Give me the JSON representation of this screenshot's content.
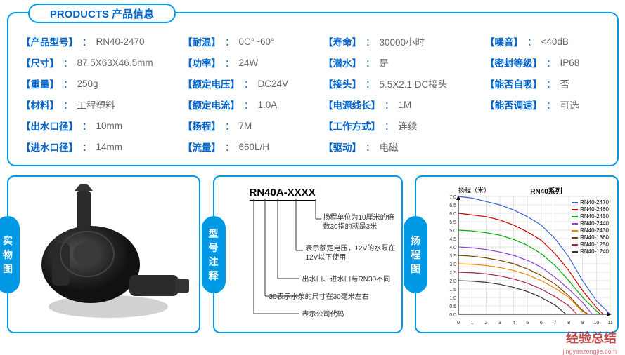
{
  "header": {
    "title": "PRODUCTS  产品信息"
  },
  "specs": {
    "col1": [
      {
        "label": "产品型号",
        "val": "RN40-2470"
      },
      {
        "label": "尺寸",
        "val": "87.5X63X46.5mm"
      },
      {
        "label": "重量",
        "val": "250g"
      },
      {
        "label": "材料",
        "val": "工程塑料"
      },
      {
        "label": "出水口径",
        "val": "10mm"
      },
      {
        "label": "进水口径",
        "val": "14mm"
      }
    ],
    "col2": [
      {
        "label": "耐温",
        "val": "0C°~60°"
      },
      {
        "label": "功率",
        "val": "24W"
      },
      {
        "label": "额定电压",
        "val": "DC24V"
      },
      {
        "label": "额定电流",
        "val": "1.0A"
      },
      {
        "label": "扬程",
        "val": "7M"
      },
      {
        "label": "流量",
        "val": "660L/H"
      }
    ],
    "col3": [
      {
        "label": "寿命",
        "val": "30000小时"
      },
      {
        "label": "潜水",
        "val": "是"
      },
      {
        "label": "接头",
        "val": "5.5X2.1 DC接头"
      },
      {
        "label": "电源线长",
        "val": "1M"
      },
      {
        "label": "工作方式",
        "val": "连续"
      },
      {
        "label": "驱动",
        "val": "电磁"
      }
    ],
    "col4": [
      {
        "label": "噪音",
        "val": "<40dB"
      },
      {
        "label": "密封等级",
        "val": "IP68"
      },
      {
        "label": "能否自吸",
        "val": "否"
      },
      {
        "label": "能否调速",
        "val": "可选"
      }
    ]
  },
  "badges": {
    "b1": "实物图",
    "b2": "型号注释",
    "b3": "扬程图"
  },
  "model": {
    "title": "RN40A-XXXX",
    "annotations": [
      "扬程单位为10厘米的倍数30指的就是3米",
      "表示额定电压，12V的水泵在12V以下使用",
      "出水口、进水口与RN30不同",
      "30表示水泵的尺寸在30毫米左右",
      "表示公司代码"
    ]
  },
  "chart": {
    "type": "line",
    "title": "RN40系列",
    "y_label": "扬程（米）",
    "xlim": [
      0,
      11
    ],
    "ylim": [
      0,
      7
    ],
    "y_ticks": [
      0,
      0.5,
      1.0,
      1.5,
      2.0,
      2.5,
      3.0,
      3.5,
      4.0,
      4.5,
      5.0,
      5.5,
      6.0,
      6.5,
      7.0
    ],
    "x_ticks": [
      0,
      1,
      2,
      3,
      4,
      5,
      6,
      7,
      8,
      9,
      10,
      11
    ],
    "background_color": "#ffffff",
    "grid_color": "#cccccc",
    "line_width": 1.2,
    "series": [
      {
        "name": "RN40-2470",
        "color": "#3366cc",
        "data": [
          [
            0,
            7.0
          ],
          [
            1,
            6.9
          ],
          [
            2,
            6.7
          ],
          [
            3,
            6.5
          ],
          [
            4,
            6.2
          ],
          [
            5,
            5.8
          ],
          [
            6,
            5.3
          ],
          [
            7,
            4.5
          ],
          [
            8,
            3.4
          ],
          [
            9,
            2.0
          ],
          [
            10,
            0.8
          ],
          [
            11,
            0
          ]
        ]
      },
      {
        "name": "RN40-2460",
        "color": "#cc0000",
        "data": [
          [
            0,
            6.0
          ],
          [
            1,
            5.9
          ],
          [
            2,
            5.8
          ],
          [
            3,
            5.6
          ],
          [
            4,
            5.3
          ],
          [
            5,
            4.9
          ],
          [
            6,
            4.4
          ],
          [
            7,
            3.6
          ],
          [
            8,
            2.6
          ],
          [
            9,
            1.4
          ],
          [
            10,
            0.4
          ],
          [
            10.5,
            0
          ]
        ]
      },
      {
        "name": "RN40-2450",
        "color": "#00aa00",
        "data": [
          [
            0,
            5.0
          ],
          [
            1,
            4.95
          ],
          [
            2,
            4.85
          ],
          [
            3,
            4.7
          ],
          [
            4,
            4.45
          ],
          [
            5,
            4.1
          ],
          [
            6,
            3.6
          ],
          [
            7,
            2.9
          ],
          [
            8,
            2.0
          ],
          [
            9,
            1.0
          ],
          [
            10,
            0.2
          ],
          [
            10.3,
            0
          ]
        ]
      },
      {
        "name": "RN40-2440",
        "color": "#8844cc",
        "data": [
          [
            0,
            4.0
          ],
          [
            1,
            3.95
          ],
          [
            2,
            3.85
          ],
          [
            3,
            3.7
          ],
          [
            4,
            3.5
          ],
          [
            5,
            3.2
          ],
          [
            6,
            2.8
          ],
          [
            7,
            2.2
          ],
          [
            8,
            1.5
          ],
          [
            9,
            0.7
          ],
          [
            9.7,
            0
          ]
        ]
      },
      {
        "name": "RN40-2430",
        "color": "#ee8800",
        "data": [
          [
            0,
            3.0
          ],
          [
            1,
            2.97
          ],
          [
            2,
            2.9
          ],
          [
            3,
            2.78
          ],
          [
            4,
            2.6
          ],
          [
            5,
            2.35
          ],
          [
            6,
            2.0
          ],
          [
            7,
            1.55
          ],
          [
            8,
            1.0
          ],
          [
            8.8,
            0.3
          ],
          [
            9.3,
            0
          ]
        ]
      },
      {
        "name": "RN40-1860",
        "color": "#774400",
        "data": [
          [
            0,
            3.5
          ],
          [
            1,
            3.45
          ],
          [
            2,
            3.35
          ],
          [
            3,
            3.2
          ],
          [
            4,
            3.0
          ],
          [
            5,
            2.7
          ],
          [
            6,
            2.3
          ],
          [
            7,
            1.8
          ],
          [
            8,
            1.1
          ],
          [
            8.9,
            0.3
          ],
          [
            9.4,
            0
          ]
        ]
      },
      {
        "name": "RN40-1250",
        "color": "#aa2244",
        "data": [
          [
            0,
            2.5
          ],
          [
            1,
            2.47
          ],
          [
            2,
            2.4
          ],
          [
            3,
            2.28
          ],
          [
            4,
            2.1
          ],
          [
            5,
            1.85
          ],
          [
            6,
            1.5
          ],
          [
            7,
            1.05
          ],
          [
            8,
            0.5
          ],
          [
            8.6,
            0
          ]
        ]
      },
      {
        "name": "RN40-1240",
        "color": "#333333",
        "data": [
          [
            0,
            2.0
          ],
          [
            1,
            1.97
          ],
          [
            2,
            1.9
          ],
          [
            3,
            1.78
          ],
          [
            4,
            1.6
          ],
          [
            5,
            1.35
          ],
          [
            6,
            1.0
          ],
          [
            7,
            0.55
          ],
          [
            7.8,
            0
          ]
        ]
      }
    ]
  },
  "watermark": {
    "main": "经验总结",
    "sub": "jingyanzongjie.com"
  }
}
